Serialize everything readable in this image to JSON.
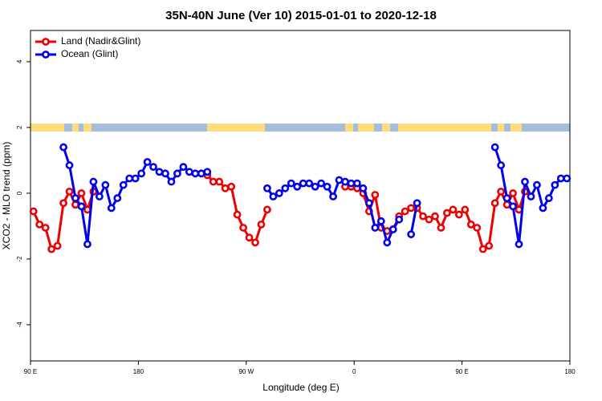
{
  "chart_data": {
    "type": "line",
    "title": "35N-40N June (Ver 10)   2015-01-01 to 2020-12-18",
    "xlabel": "Longitude (deg E)",
    "ylabel": "XCO2 - MLO trend (ppm)",
    "x": [
      92.5,
      97.5,
      102.5,
      107.5,
      112.5,
      117.5,
      122.5,
      127.5,
      132.5,
      137.5,
      142.5,
      147.5,
      152.5,
      157.5,
      162.5,
      167.5,
      172.5,
      177.5,
      182.5,
      187.5,
      192.5,
      197.5,
      202.5,
      207.5,
      212.5,
      217.5,
      222.5,
      227.5,
      232.5,
      237.5,
      242.5,
      247.5,
      252.5,
      257.5,
      262.5,
      267.5,
      272.5,
      277.5,
      282.5,
      287.5,
      292.5,
      297.5,
      302.5,
      307.5,
      312.5,
      317.5,
      322.5,
      327.5,
      332.5,
      337.5,
      342.5,
      347.5,
      352.5,
      357.5,
      362.5,
      367.5,
      372.5,
      377.5,
      382.5,
      387.5,
      392.5,
      397.5,
      402.5,
      407.5,
      412.5,
      417.5,
      422.5,
      427.5,
      432.5,
      437.5,
      442.5,
      447.5,
      452.5,
      457.5,
      462.5,
      467.5,
      472.5,
      477.5,
      482.5,
      487.5,
      492.5,
      497.5,
      502.5,
      507.5,
      512.5,
      517.5,
      522.5,
      527.5,
      532.5,
      537.5
    ],
    "series": [
      {
        "name": "Land (Nadir&Glint)",
        "color": "#ee0000",
        "values": [
          -0.55,
          -0.95,
          -1.05,
          -1.7,
          -1.6,
          -0.3,
          0.05,
          -0.35,
          0.0,
          -0.5,
          0.05,
          null,
          null,
          null,
          null,
          null,
          null,
          null,
          null,
          null,
          null,
          null,
          null,
          null,
          null,
          null,
          null,
          null,
          null,
          0.55,
          0.35,
          0.35,
          0.15,
          0.2,
          -0.65,
          -1.05,
          -1.35,
          -1.5,
          -0.95,
          -0.5,
          null,
          null,
          null,
          null,
          null,
          null,
          null,
          null,
          null,
          null,
          null,
          null,
          0.2,
          0.2,
          0.15,
          0.0,
          -0.55,
          -0.05,
          -1.05,
          -1.15,
          -1.1,
          -0.7,
          -0.55,
          -0.45,
          -0.45,
          -0.7,
          -0.8,
          -0.7,
          -1.05,
          -0.6,
          -0.5,
          -0.65,
          -0.5,
          -0.95,
          -1.05,
          -1.7,
          -1.6,
          -0.3,
          0.05,
          -0.35,
          0.0,
          -0.5,
          0.05,
          null,
          null,
          null,
          null,
          null,
          null,
          null
        ]
      },
      {
        "name": "Ocean (Glint)",
        "color": "#0000ee",
        "values": [
          null,
          null,
          null,
          null,
          null,
          1.4,
          0.85,
          -0.15,
          -0.4,
          -1.55,
          0.35,
          -0.1,
          0.25,
          -0.45,
          -0.15,
          0.25,
          0.45,
          0.45,
          0.6,
          0.95,
          0.8,
          0.65,
          0.6,
          0.35,
          0.6,
          0.8,
          0.65,
          0.6,
          0.6,
          0.65,
          null,
          null,
          null,
          null,
          null,
          null,
          null,
          null,
          null,
          0.15,
          -0.1,
          0.0,
          0.15,
          0.3,
          0.2,
          0.3,
          0.3,
          0.2,
          0.3,
          0.2,
          -0.1,
          0.4,
          0.35,
          0.3,
          0.3,
          0.15,
          -0.3,
          -1.05,
          -0.85,
          -1.5,
          -1.1,
          -0.8,
          null,
          -1.25,
          -0.3,
          null,
          null,
          null,
          null,
          null,
          null,
          null,
          null,
          null,
          null,
          null,
          null,
          1.4,
          0.85,
          -0.15,
          -0.4,
          -1.55,
          0.35,
          -0.1,
          0.25,
          -0.45,
          -0.15,
          0.25,
          0.45,
          0.45
        ]
      }
    ],
    "xlim": [
      90,
      540
    ],
    "xticks": [
      {
        "value": 90,
        "label": "90 E"
      },
      180,
      {
        "value": 270,
        "label": "90 W"
      },
      {
        "value": 360,
        "label": "0"
      },
      {
        "value": 450,
        "label": "90 E"
      },
      {
        "value": 540,
        "label": "180"
      }
    ],
    "ylim": [
      -5.1,
      4.95
    ],
    "yticks": [
      -4,
      -2,
      0,
      2,
      4
    ],
    "legend": "top-left"
  }
}
